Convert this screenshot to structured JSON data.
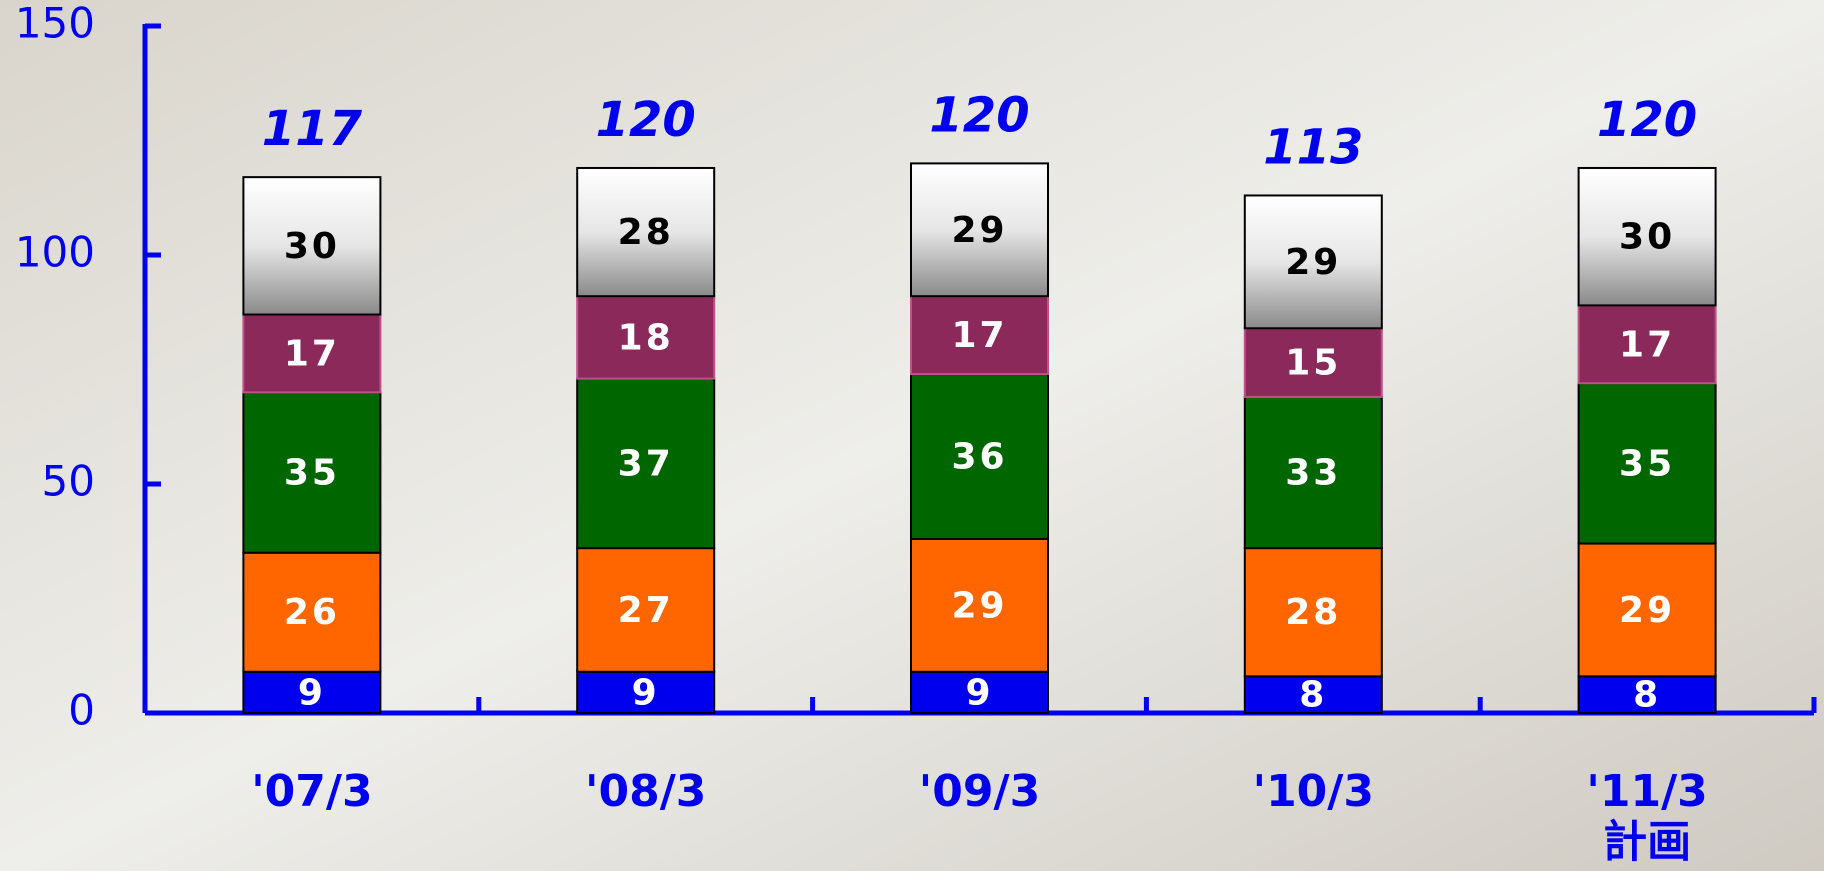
{
  "chart_data": {
    "type": "stacked_bar",
    "categories": [
      "'07/3",
      "'08/3",
      "'09/3",
      "'10/3",
      "'11/3\n計画"
    ],
    "series": [
      {
        "color": "#0000ee",
        "label_color": "#ffffff",
        "values": [
          9,
          9,
          9,
          8,
          8
        ]
      },
      {
        "color": "#ff6600",
        "label_color": "#ffffff",
        "values": [
          26,
          27,
          29,
          28,
          29
        ]
      },
      {
        "color": "#006600",
        "label_color": "#ffffff",
        "values": [
          35,
          37,
          36,
          33,
          35
        ]
      },
      {
        "color": "#8b2a5a",
        "label_color": "#ffffff",
        "values": [
          17,
          18,
          17,
          15,
          17
        ]
      },
      {
        "color": "#c8c8c8",
        "label_color": "#000000",
        "values": [
          30,
          28,
          29,
          29,
          30
        ]
      }
    ],
    "totals": [
      117,
      120,
      120,
      113,
      120
    ],
    "ylim": [
      0,
      150
    ],
    "yticks": [
      0,
      50,
      100,
      150
    ],
    "axis_color": "#0000ee"
  }
}
